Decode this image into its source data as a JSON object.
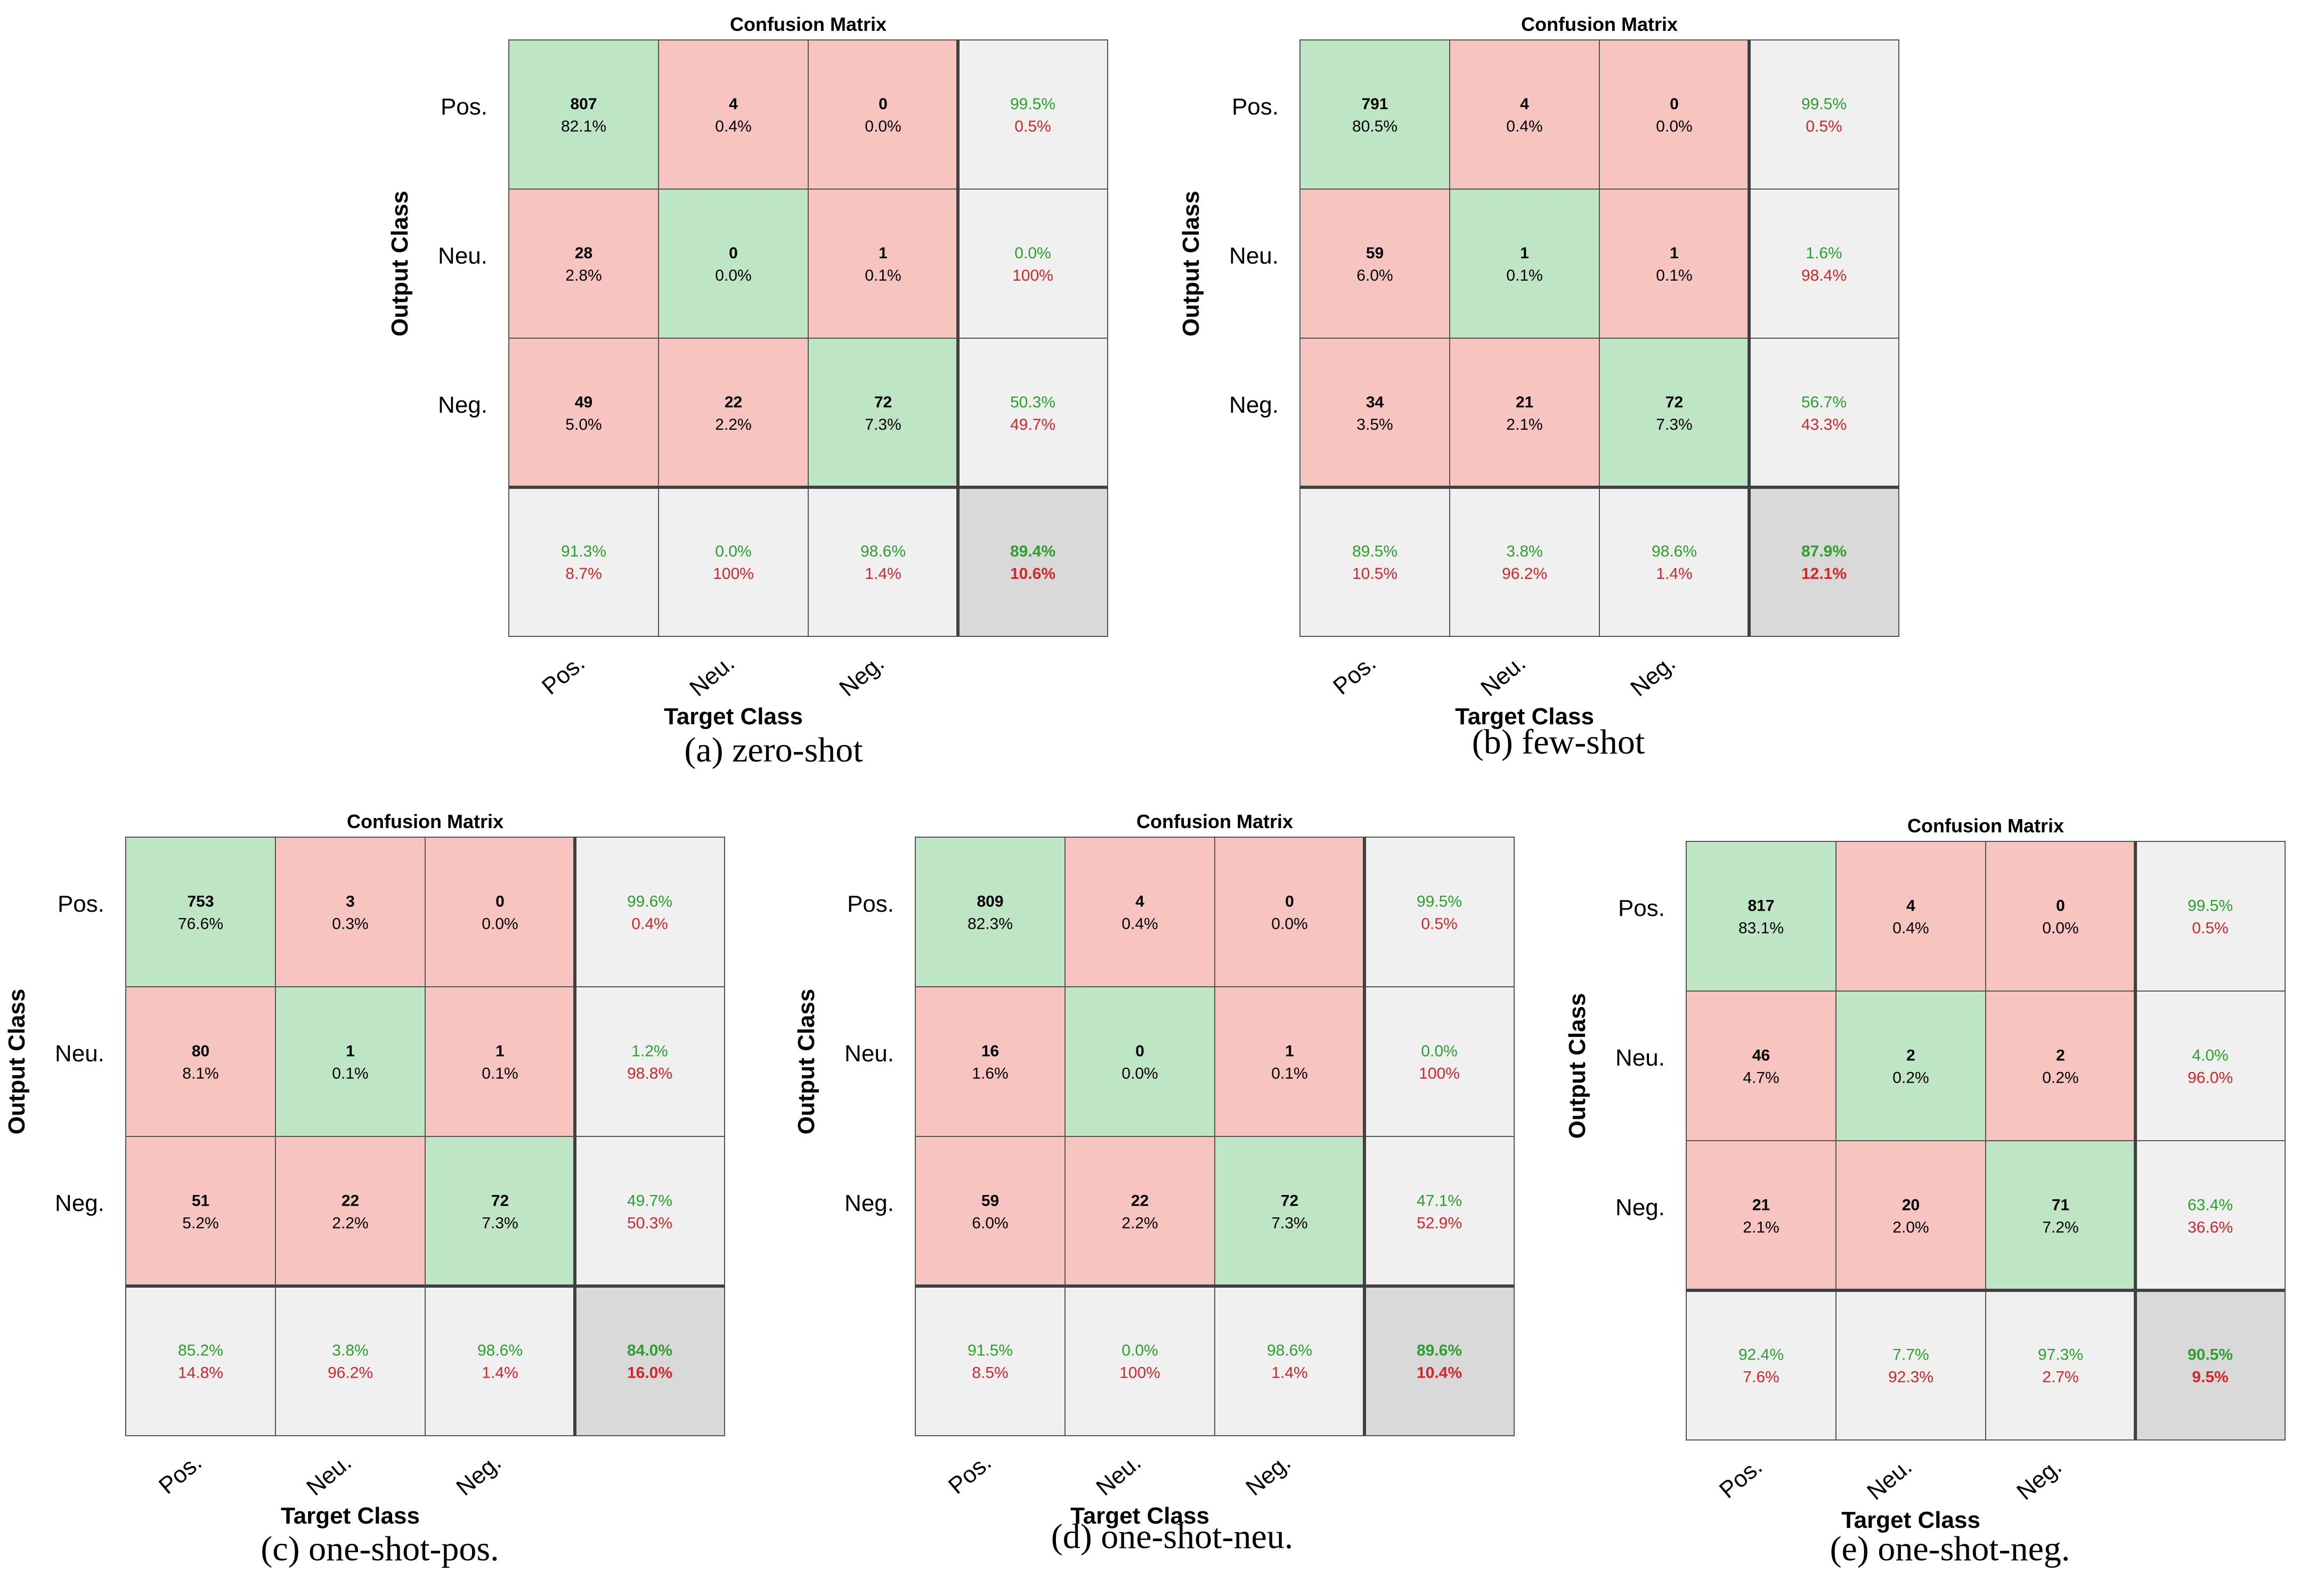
{
  "colors": {
    "correct_cell": "#bfe6c4",
    "wrong_cell": "#f7c4bf",
    "summary_cell": "#f0f0f0",
    "overall_cell": "#d9d9d9",
    "good_text": "#2ca02c",
    "bad_text": "#d62728",
    "grid_line": "#555555",
    "separator_line": "#404040"
  },
  "chart_data": [
    {
      "type": "heatmap",
      "title": "Confusion Matrix",
      "caption": "(a) zero-shot",
      "xlabel": "Target Class",
      "ylabel": "Output Class",
      "classes": [
        "Pos.",
        "Neu.",
        "Neg."
      ],
      "counts": [
        [
          807,
          4,
          0
        ],
        [
          28,
          0,
          1
        ],
        [
          49,
          22,
          72
        ]
      ],
      "percents": [
        [
          "82.1%",
          "0.4%",
          "0.0%"
        ],
        [
          "2.8%",
          "0.0%",
          "0.1%"
        ],
        [
          "5.0%",
          "2.2%",
          "7.3%"
        ]
      ],
      "row_summary": [
        [
          "99.5%",
          "0.5%"
        ],
        [
          "0.0%",
          "100%"
        ],
        [
          "50.3%",
          "49.7%"
        ]
      ],
      "col_summary": [
        [
          "91.3%",
          "8.7%"
        ],
        [
          "0.0%",
          "100%"
        ],
        [
          "98.6%",
          "1.4%"
        ]
      ],
      "overall": [
        "89.4%",
        "10.6%"
      ]
    },
    {
      "type": "heatmap",
      "title": "Confusion Matrix",
      "caption": "(b) few-shot",
      "xlabel": "Target Class",
      "ylabel": "Output Class",
      "classes": [
        "Pos.",
        "Neu.",
        "Neg."
      ],
      "counts": [
        [
          791,
          4,
          0
        ],
        [
          59,
          1,
          1
        ],
        [
          34,
          21,
          72
        ]
      ],
      "percents": [
        [
          "80.5%",
          "0.4%",
          "0.0%"
        ],
        [
          "6.0%",
          "0.1%",
          "0.1%"
        ],
        [
          "3.5%",
          "2.1%",
          "7.3%"
        ]
      ],
      "row_summary": [
        [
          "99.5%",
          "0.5%"
        ],
        [
          "1.6%",
          "98.4%"
        ],
        [
          "56.7%",
          "43.3%"
        ]
      ],
      "col_summary": [
        [
          "89.5%",
          "10.5%"
        ],
        [
          "3.8%",
          "96.2%"
        ],
        [
          "98.6%",
          "1.4%"
        ]
      ],
      "overall": [
        "87.9%",
        "12.1%"
      ]
    },
    {
      "type": "heatmap",
      "title": "Confusion Matrix",
      "caption": "(c) one-shot-pos.",
      "xlabel": "Target Class",
      "ylabel": "Output Class",
      "classes": [
        "Pos.",
        "Neu.",
        "Neg."
      ],
      "counts": [
        [
          753,
          3,
          0
        ],
        [
          80,
          1,
          1
        ],
        [
          51,
          22,
          72
        ]
      ],
      "percents": [
        [
          "76.6%",
          "0.3%",
          "0.0%"
        ],
        [
          "8.1%",
          "0.1%",
          "0.1%"
        ],
        [
          "5.2%",
          "2.2%",
          "7.3%"
        ]
      ],
      "row_summary": [
        [
          "99.6%",
          "0.4%"
        ],
        [
          "1.2%",
          "98.8%"
        ],
        [
          "49.7%",
          "50.3%"
        ]
      ],
      "col_summary": [
        [
          "85.2%",
          "14.8%"
        ],
        [
          "3.8%",
          "96.2%"
        ],
        [
          "98.6%",
          "1.4%"
        ]
      ],
      "overall": [
        "84.0%",
        "16.0%"
      ]
    },
    {
      "type": "heatmap",
      "title": "Confusion Matrix",
      "caption": "(d) one-shot-neu.",
      "xlabel": "Target Class",
      "ylabel": "Output Class",
      "classes": [
        "Pos.",
        "Neu.",
        "Neg."
      ],
      "counts": [
        [
          809,
          4,
          0
        ],
        [
          16,
          0,
          1
        ],
        [
          59,
          22,
          72
        ]
      ],
      "percents": [
        [
          "82.3%",
          "0.4%",
          "0.0%"
        ],
        [
          "1.6%",
          "0.0%",
          "0.1%"
        ],
        [
          "6.0%",
          "2.2%",
          "7.3%"
        ]
      ],
      "row_summary": [
        [
          "99.5%",
          "0.5%"
        ],
        [
          "0.0%",
          "100%"
        ],
        [
          "47.1%",
          "52.9%"
        ]
      ],
      "col_summary": [
        [
          "91.5%",
          "8.5%"
        ],
        [
          "0.0%",
          "100%"
        ],
        [
          "98.6%",
          "1.4%"
        ]
      ],
      "overall": [
        "89.6%",
        "10.4%"
      ]
    },
    {
      "type": "heatmap",
      "title": "Confusion Matrix",
      "caption": "(e) one-shot-neg.",
      "xlabel": "Target Class",
      "ylabel": "Output Class",
      "classes": [
        "Pos.",
        "Neu.",
        "Neg."
      ],
      "counts": [
        [
          817,
          4,
          0
        ],
        [
          46,
          2,
          2
        ],
        [
          21,
          20,
          71
        ]
      ],
      "percents": [
        [
          "83.1%",
          "0.4%",
          "0.0%"
        ],
        [
          "4.7%",
          "0.2%",
          "0.2%"
        ],
        [
          "2.1%",
          "2.0%",
          "7.2%"
        ]
      ],
      "row_summary": [
        [
          "99.5%",
          "0.5%"
        ],
        [
          "4.0%",
          "96.0%"
        ],
        [
          "63.4%",
          "36.6%"
        ]
      ],
      "col_summary": [
        [
          "92.4%",
          "7.6%"
        ],
        [
          "7.7%",
          "92.3%"
        ],
        [
          "97.3%",
          "2.7%"
        ]
      ],
      "overall": [
        "90.5%",
        "9.5%"
      ]
    }
  ]
}
